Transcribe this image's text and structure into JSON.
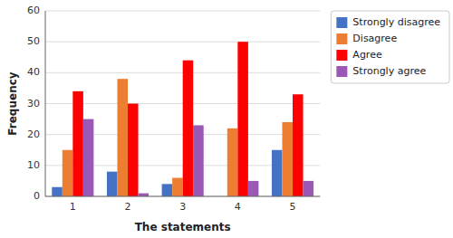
{
  "chart_data": {
    "type": "bar",
    "xlabel": "The statements",
    "ylabel": "Frequency",
    "categories": [
      "1",
      "2",
      "3",
      "4",
      "5"
    ],
    "series": [
      {
        "name": "Strongly disagree",
        "color": "#4472C4",
        "values": [
          3,
          8,
          4,
          0,
          15
        ]
      },
      {
        "name": "Disagree",
        "color": "#ED7D31",
        "values": [
          15,
          38,
          6,
          22,
          24
        ]
      },
      {
        "name": "Agree",
        "color": "#FF0000",
        "values": [
          34,
          30,
          44,
          50,
          33
        ]
      },
      {
        "name": "Strongly agree",
        "color": "#9B59B6",
        "values": [
          25,
          1,
          23,
          5,
          5
        ]
      }
    ],
    "ylim": [
      0,
      60
    ],
    "yticks": [
      0,
      10,
      20,
      30,
      40,
      50,
      60
    ],
    "grid": true,
    "legend": "right"
  }
}
